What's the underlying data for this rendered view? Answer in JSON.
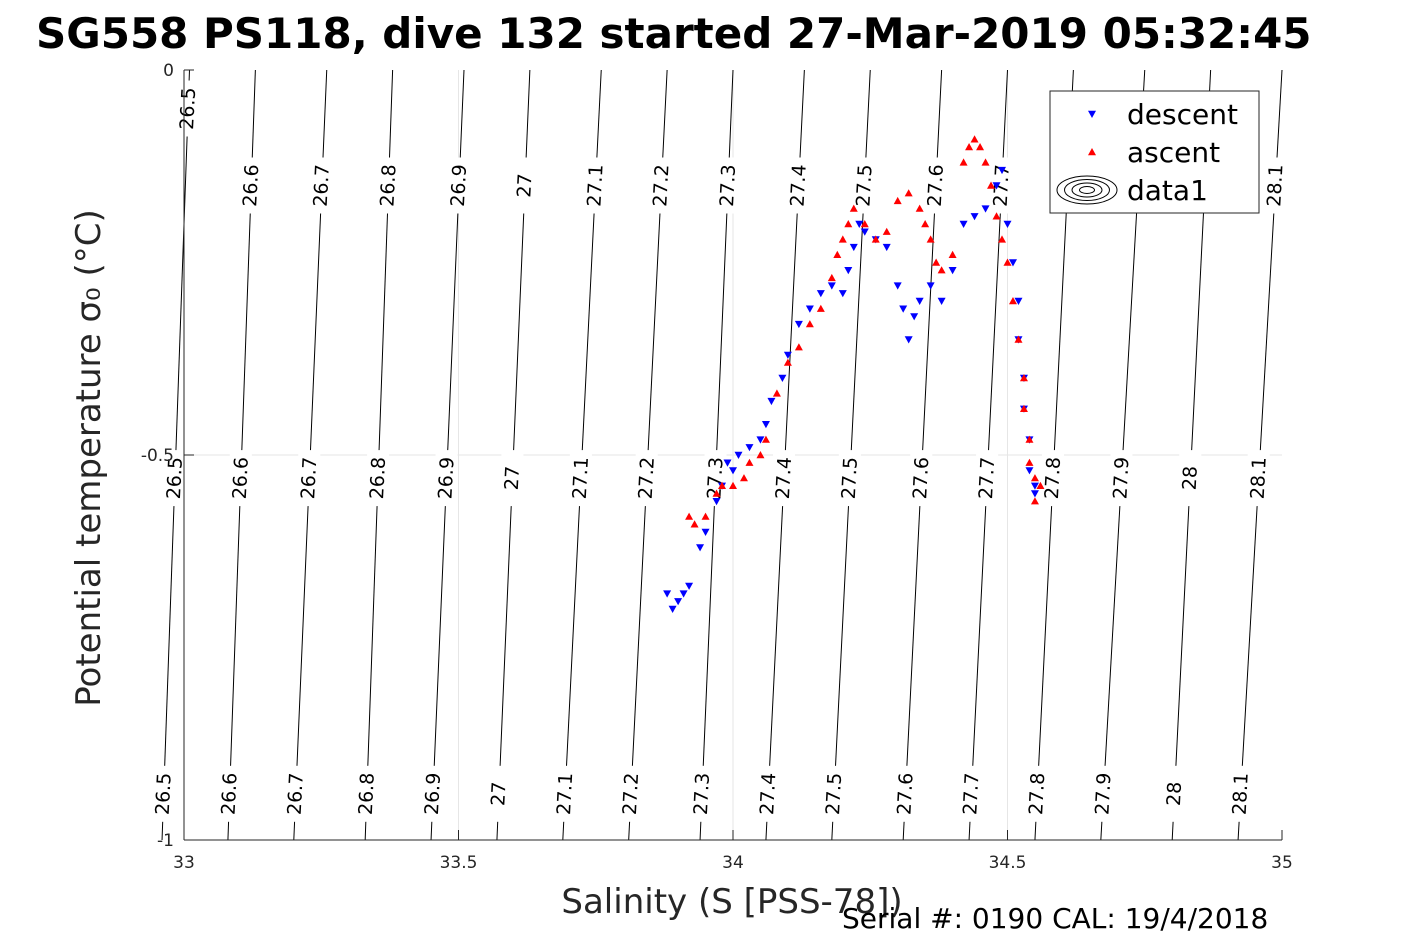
{
  "chart_data": {
    "type": "scatter",
    "title": "SG558 PS118, dive 132 started 27-Mar-2019 05:32:45",
    "xlabel": "Salinity (S [PSS-78])",
    "ylabel": "Potential temperature σ₀ (°C)",
    "xlim": [
      33,
      35
    ],
    "ylim": [
      -1,
      0
    ],
    "x_ticks": [
      "33",
      "33.5",
      "34",
      "34.5",
      "35"
    ],
    "y_ticks": [
      "0",
      "-0.5",
      "-1"
    ],
    "grid": true,
    "legend_position": "top-right",
    "footer": "Serial #: 0190  CAL: 19/4/2018",
    "contours": {
      "color": "#000000",
      "levels": [
        26.5,
        26.6,
        26.7,
        26.8,
        26.9,
        27,
        27.1,
        27.2,
        27.3,
        27.4,
        27.5,
        27.6,
        27.7,
        27.8,
        27.9,
        28,
        28.1
      ],
      "labels": [
        "26.5",
        "26.6",
        "26.7",
        "26.8",
        "26.9",
        "27",
        "27.1",
        "27.2",
        "27.3",
        "27.4",
        "27.5",
        "27.6",
        "27.7",
        "27.8",
        "27.9",
        "28",
        "28.1"
      ],
      "salinity_at_top": [
        33.01,
        33.13,
        33.26,
        33.38,
        33.51,
        33.63,
        33.76,
        33.88,
        34.0,
        34.13,
        34.25,
        34.38,
        34.5,
        34.62,
        34.75,
        34.87,
        35.0
      ],
      "salinity_at_bottom": [
        32.96,
        33.08,
        33.2,
        33.33,
        33.45,
        33.57,
        33.69,
        33.81,
        33.94,
        34.06,
        34.18,
        34.31,
        34.43,
        34.55,
        34.67,
        34.8,
        34.92
      ]
    },
    "series": [
      {
        "name": "descent",
        "color": "#0000ff",
        "marker": "triangle-down",
        "x": [
          33.88,
          33.89,
          33.9,
          33.91,
          33.92,
          33.94,
          33.95,
          33.97,
          33.98,
          33.99,
          34.0,
          34.01,
          34.03,
          34.05,
          34.06,
          34.07,
          34.09,
          34.1,
          34.12,
          34.14,
          34.16,
          34.18,
          34.2,
          34.21,
          34.22,
          34.23,
          34.24,
          34.26,
          34.28,
          34.3,
          34.31,
          34.32,
          34.33,
          34.34,
          34.36,
          34.38,
          34.4,
          34.42,
          34.44,
          34.46,
          34.48,
          34.49,
          34.5,
          34.51,
          34.52,
          34.52,
          34.53,
          34.53,
          34.54,
          34.54,
          34.55,
          34.55
        ],
        "y": [
          -0.68,
          -0.7,
          -0.69,
          -0.68,
          -0.67,
          -0.62,
          -0.6,
          -0.56,
          -0.54,
          -0.51,
          -0.52,
          -0.5,
          -0.49,
          -0.48,
          -0.46,
          -0.43,
          -0.4,
          -0.37,
          -0.33,
          -0.31,
          -0.29,
          -0.28,
          -0.29,
          -0.26,
          -0.23,
          -0.2,
          -0.21,
          -0.22,
          -0.23,
          -0.28,
          -0.31,
          -0.35,
          -0.32,
          -0.3,
          -0.28,
          -0.3,
          -0.26,
          -0.2,
          -0.19,
          -0.18,
          -0.15,
          -0.13,
          -0.2,
          -0.25,
          -0.3,
          -0.35,
          -0.4,
          -0.44,
          -0.48,
          -0.52,
          -0.55,
          -0.54
        ]
      },
      {
        "name": "ascent",
        "color": "#ff0000",
        "marker": "triangle-up",
        "x": [
          33.92,
          33.93,
          33.95,
          33.97,
          33.98,
          34.0,
          34.02,
          34.03,
          34.05,
          34.06,
          34.08,
          34.1,
          34.12,
          34.14,
          34.16,
          34.18,
          34.19,
          34.2,
          34.21,
          34.22,
          34.24,
          34.26,
          34.28,
          34.3,
          34.32,
          34.34,
          34.35,
          34.36,
          34.37,
          34.38,
          34.4,
          34.42,
          34.43,
          34.44,
          34.45,
          34.46,
          34.47,
          34.48,
          34.49,
          34.5,
          34.51,
          34.52,
          34.53,
          34.53,
          34.54,
          34.54,
          34.55,
          34.55,
          34.56
        ],
        "y": [
          -0.58,
          -0.59,
          -0.58,
          -0.55,
          -0.54,
          -0.54,
          -0.53,
          -0.51,
          -0.5,
          -0.48,
          -0.42,
          -0.38,
          -0.36,
          -0.33,
          -0.31,
          -0.27,
          -0.24,
          -0.22,
          -0.2,
          -0.18,
          -0.2,
          -0.22,
          -0.21,
          -0.17,
          -0.16,
          -0.18,
          -0.2,
          -0.22,
          -0.25,
          -0.26,
          -0.24,
          -0.12,
          -0.1,
          -0.09,
          -0.1,
          -0.12,
          -0.15,
          -0.19,
          -0.22,
          -0.25,
          -0.3,
          -0.35,
          -0.4,
          -0.44,
          -0.48,
          -0.51,
          -0.53,
          -0.56,
          -0.54
        ]
      },
      {
        "name": "data1",
        "color": "#000000",
        "marker": "contour",
        "x": [],
        "y": []
      }
    ]
  }
}
